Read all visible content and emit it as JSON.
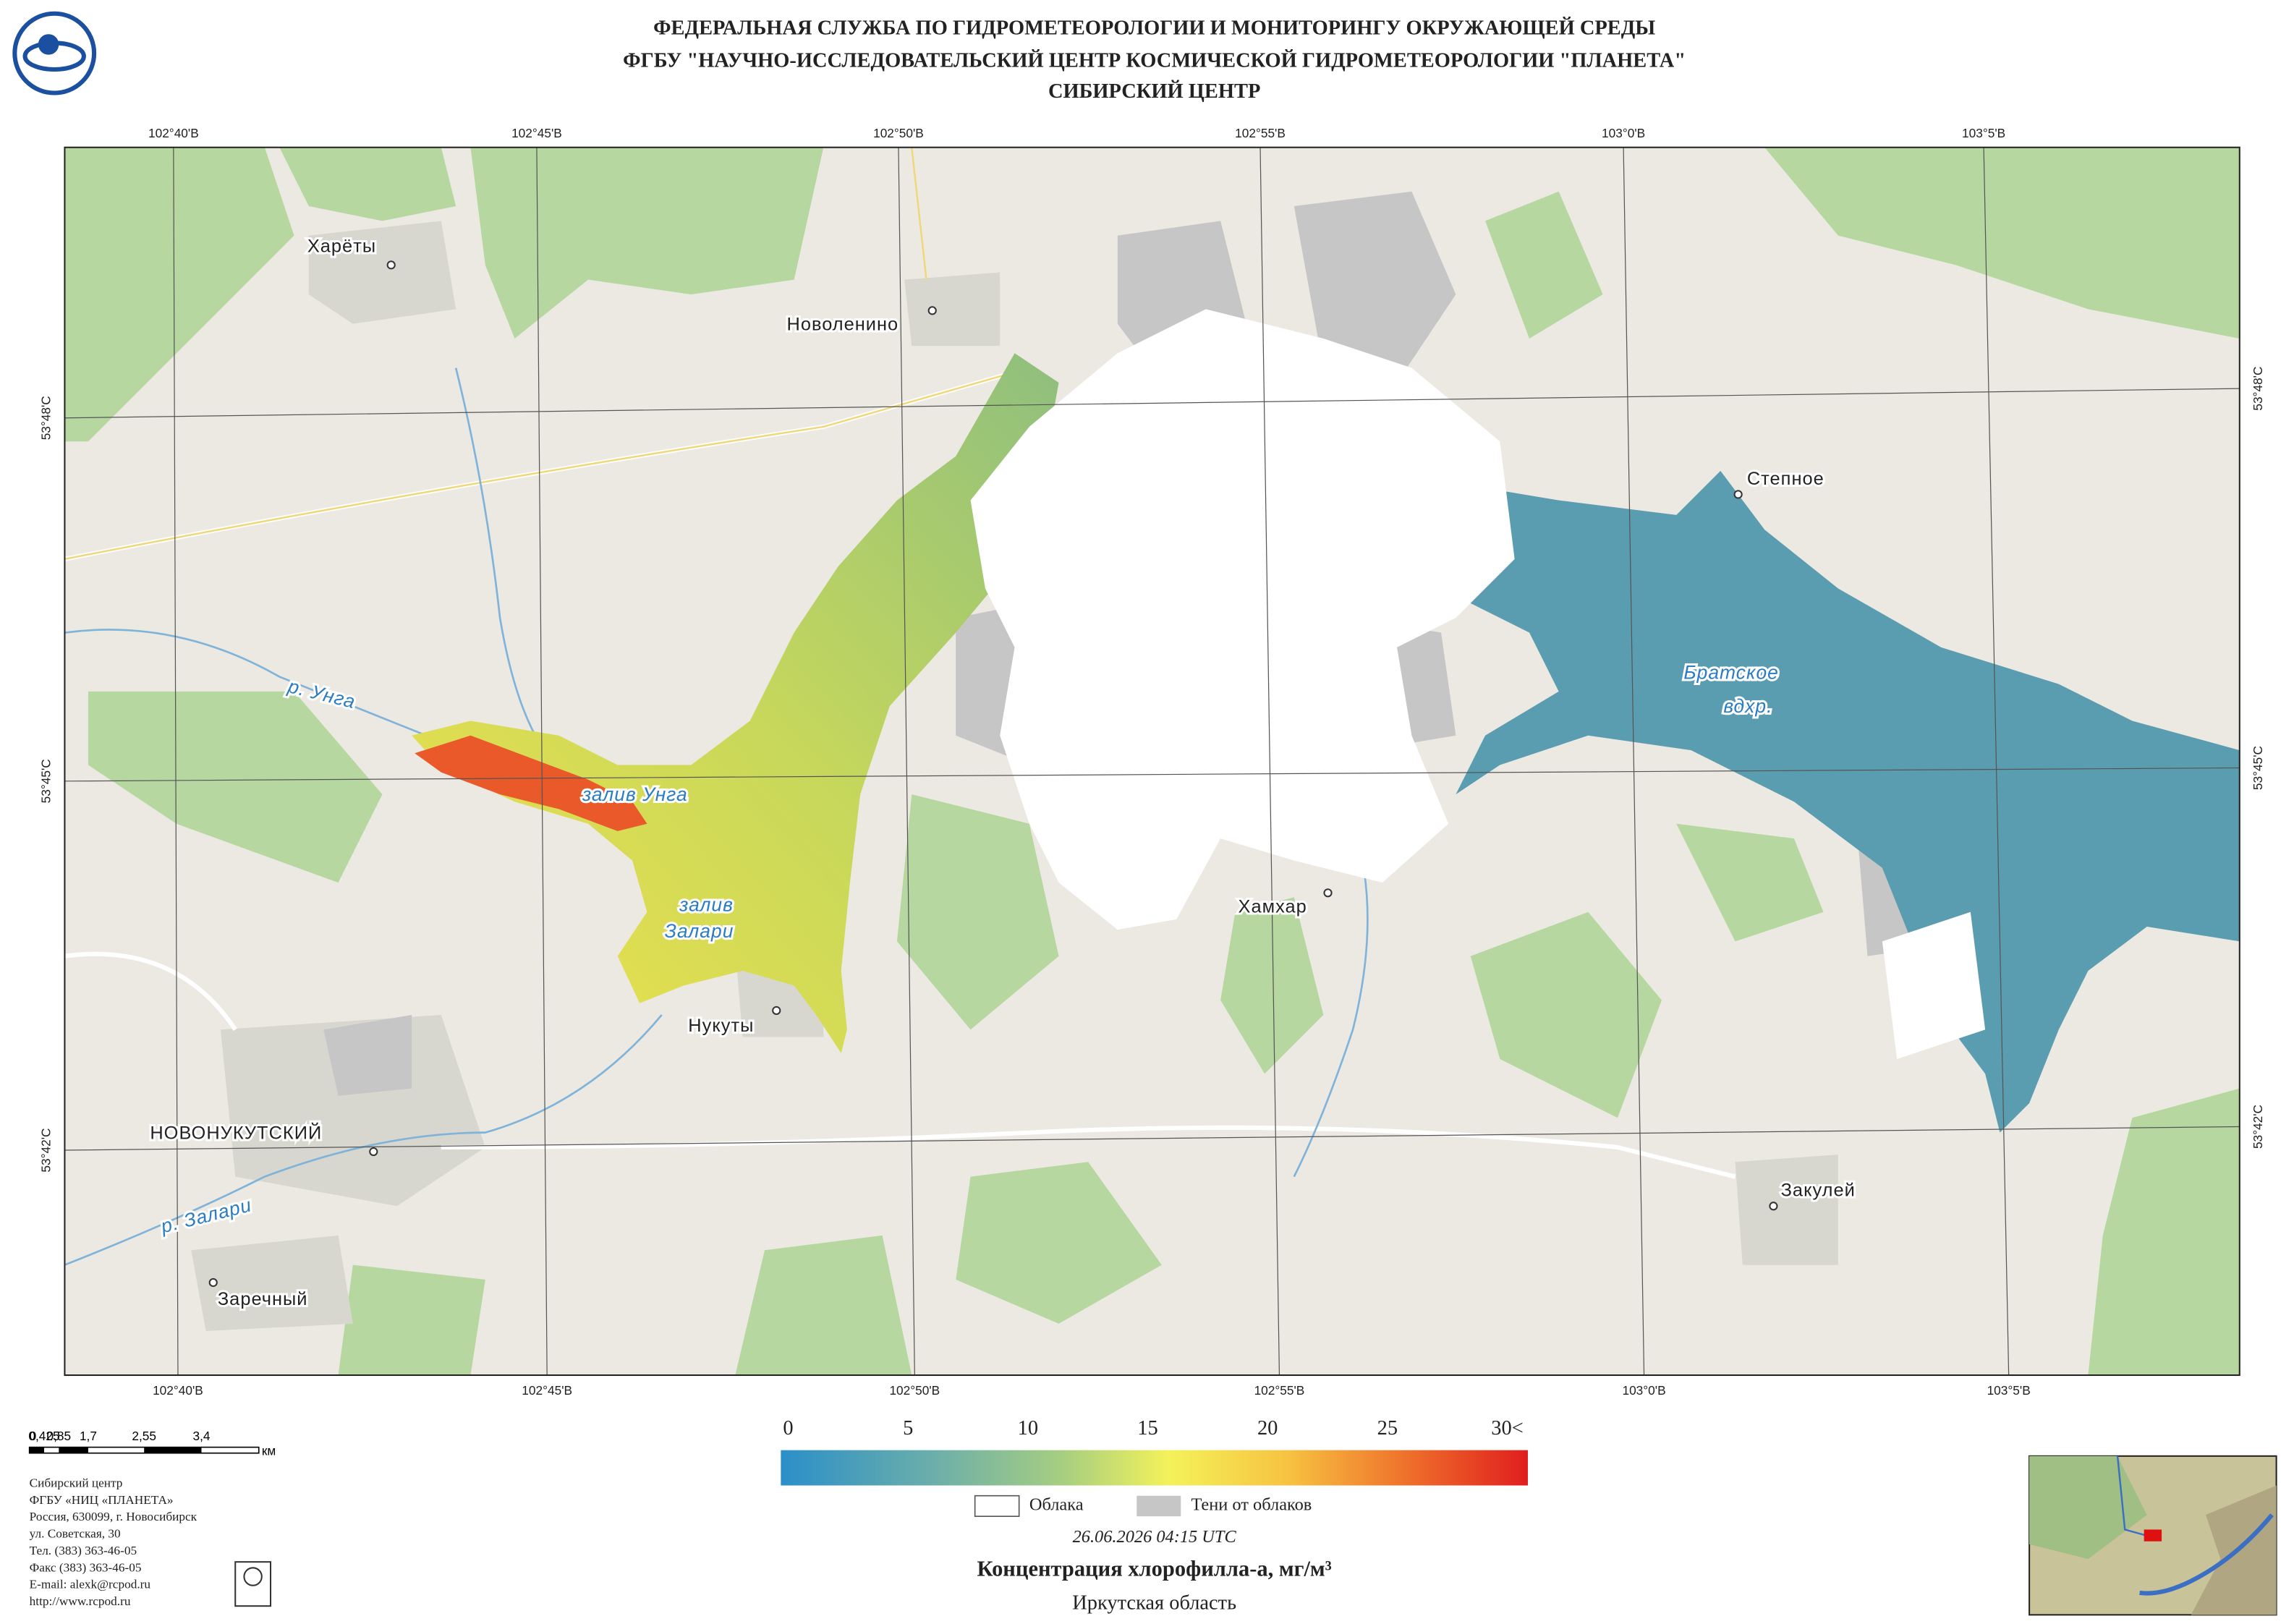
{
  "header": {
    "lines": [
      "ФЕДЕРАЛЬНАЯ СЛУЖБА ПО ГИДРОМЕТЕОРОЛОГИИ И МОНИТОРИНГУ ОКРУЖАЮЩЕЙ СРЕДЫ",
      "ФГБУ \"НАУЧНО-ИССЛЕДОВАТЕЛЬСКИЙ ЦЕНТР КОСМИЧЕСКОЙ ГИДРОМЕТЕОРОЛОГИИ \"ПЛАНЕТА\"",
      "СИБИРСКИЙ ЦЕНТР"
    ]
  },
  "grid": {
    "top": [
      "102°40'В",
      "102°45'В",
      "102°50'В",
      "102°55'В",
      "103°0'В",
      "103°5'В"
    ],
    "bottom": [
      "102°40'В",
      "102°45'В",
      "102°50'В",
      "102°55'В",
      "103°0'В",
      "103°5'В"
    ],
    "left": [
      "53°48'С",
      "53°45'С",
      "53°42'С"
    ],
    "right": [
      "53°48'С",
      "53°45'С",
      "53°42'С"
    ]
  },
  "places": [
    "Харёты",
    "Новоленино",
    "Степное",
    "Хамхар",
    "Нукуты",
    "НОВОНУКУТСКИЙ",
    "Заречный",
    "Закулей"
  ],
  "waters": [
    "р. Унга",
    "залив Унга",
    "залив",
    "Залари",
    "Братское",
    "вдхр.",
    "р. Залари"
  ],
  "scale": {
    "labels": [
      "0",
      "0,425",
      "0,85",
      "1,7",
      "2,55",
      "3,4"
    ],
    "unit": "км"
  },
  "legend": {
    "ticks": [
      "0",
      "5",
      "10",
      "15",
      "20",
      "25",
      "30<"
    ],
    "clouds": "Облака",
    "shadows": "Тени от облаков",
    "datetime": "26.06.2026  04:15 UTC",
    "title": "Концентрация хлорофилла-а, мг/м³",
    "region": "Иркутская область"
  },
  "contacts": [
    "Сибирский центр",
    "ФГБУ «НИЦ «ПЛАНЕТА»",
    "Россия, 630099, г. Новосибирск",
    "ул. Советская, 30",
    "Тел. (383) 363-46-05",
    "Факс (383) 363-46-05",
    "E-mail: alexk@rcpod.ru",
    "http://www.rcpod.ru"
  ]
}
